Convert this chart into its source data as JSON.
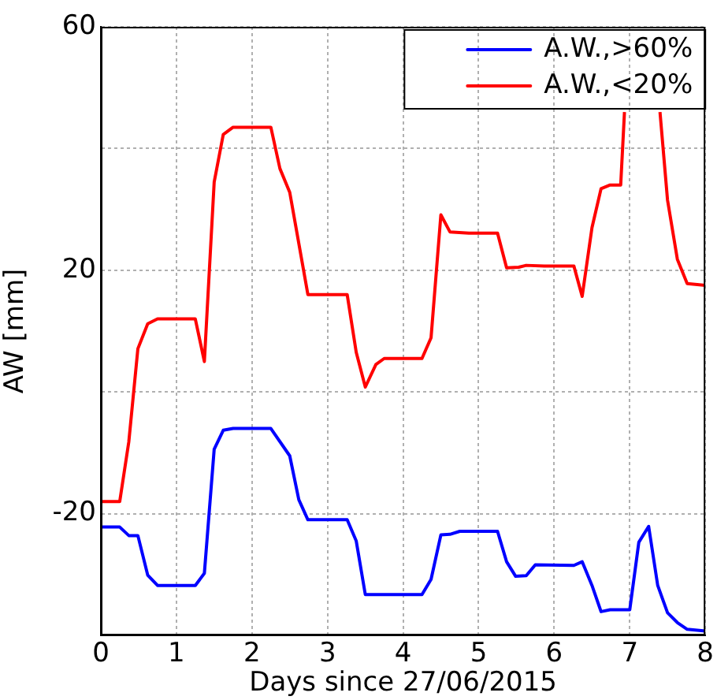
{
  "chart_data": {
    "type": "line",
    "xlabel": "Days since 27/06/2015",
    "ylabel": "AW [mm]",
    "xlim": [
      0,
      8
    ],
    "xticks": [
      0,
      1,
      2,
      3,
      4,
      5,
      6,
      7,
      8
    ],
    "ylim": [
      -40,
      60
    ],
    "yticks": [
      {
        "value": -40,
        "label": null
      },
      -20,
      {
        "value": 0,
        "label": null
      },
      20,
      {
        "value": 40,
        "label": null
      },
      60
    ],
    "grid": true,
    "legend": "top right",
    "line_style": "solid",
    "marker": "none",
    "series": [
      {
        "name": "A.W.,>60%",
        "color": "#0000ff",
        "x": [
          0,
          0.25,
          0.37,
          0.49,
          0.62,
          0.75,
          1.25,
          1.37,
          1.5,
          1.62,
          1.75,
          2.25,
          2.5,
          2.62,
          2.74,
          3.26,
          3.38,
          3.5,
          4.25,
          4.37,
          4.5,
          4.62,
          4.75,
          5.25,
          5.37,
          5.49,
          5.63,
          5.75,
          6.26,
          6.37,
          6.5,
          6.62,
          6.74,
          7.0,
          7.12,
          7.25,
          7.37,
          7.5,
          7.63,
          7.76,
          8
        ],
        "values": [
          -22.2,
          -22.2,
          -23.6,
          -23.6,
          -30.1,
          -31.8,
          -31.8,
          -29.8,
          -9.4,
          -6.3,
          -6,
          -6,
          -10.5,
          -17.7,
          -21,
          -21,
          -24.5,
          -33.3,
          -33.3,
          -30.8,
          -23.5,
          -23.4,
          -22.9,
          -22.9,
          -27.9,
          -30.3,
          -30.2,
          -28.4,
          -28.5,
          -27.9,
          -31.8,
          -36.1,
          -35.8,
          -35.8,
          -24.7,
          -22.1,
          -31.8,
          -36.3,
          -37.9,
          -39,
          -39.3
        ]
      },
      {
        "name": "A.W.,<20%",
        "color": "#ff0000",
        "x": [
          0,
          0.25,
          0.37,
          0.49,
          0.62,
          0.75,
          1.25,
          1.37,
          1.5,
          1.62,
          1.75,
          2.25,
          2.37,
          2.5,
          2.74,
          3.26,
          3.38,
          3.5,
          3.64,
          3.75,
          4.25,
          4.37,
          4.5,
          4.62,
          4.87,
          5.25,
          5.37,
          5.53,
          5.63,
          5.87,
          6.26,
          6.37,
          6.5,
          6.62,
          6.74,
          6.88,
          6.93,
          7.15,
          7.4,
          7.5,
          7.63,
          7.76,
          8
        ],
        "values": [
          -18,
          -18,
          -8.2,
          7.1,
          11.2,
          12,
          12,
          5,
          34.5,
          42.3,
          43.5,
          43.5,
          36.7,
          32.8,
          16,
          16,
          6.5,
          0.8,
          4.5,
          5.5,
          5.5,
          8.9,
          29.1,
          26.3,
          26.1,
          26.1,
          20.4,
          20.5,
          20.8,
          20.7,
          20.7,
          15.7,
          27,
          33.4,
          34,
          34,
          46,
          null,
          46,
          31.5,
          21.8,
          17.8,
          17.5
        ]
      }
    ]
  }
}
